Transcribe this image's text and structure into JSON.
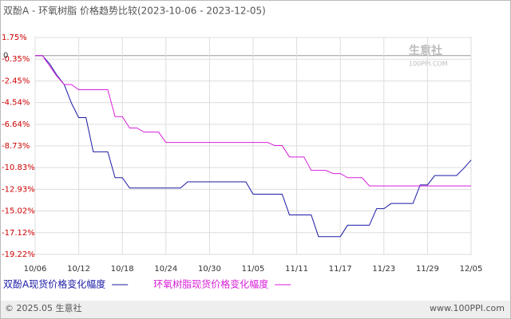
{
  "chart_data": {
    "type": "line",
    "title": "双酚A - 环氧树脂 价格趋势比较(2023-10-06 - 2023-12-05)",
    "categories": [
      "10/06",
      null,
      null,
      null,
      null,
      null,
      "10/12",
      null,
      null,
      null,
      null,
      null,
      "10/18",
      null,
      null,
      null,
      null,
      null,
      "10/24",
      null,
      null,
      null,
      null,
      null,
      "10/30",
      null,
      null,
      null,
      null,
      null,
      "11/05",
      null,
      null,
      null,
      null,
      null,
      "11/11",
      null,
      null,
      null,
      null,
      null,
      "11/17",
      null,
      null,
      null,
      null,
      null,
      "11/23",
      null,
      null,
      null,
      null,
      null,
      "11/29",
      null,
      null,
      null,
      null,
      null,
      "12/05"
    ],
    "series": [
      {
        "name": "双酚A现货价格变化幅度",
        "color": "#1a1aa6",
        "values": [
          0,
          0,
          -0.8,
          -1.9,
          -2.8,
          -4.6,
          -6.0,
          -6.0,
          -9.3,
          -9.3,
          -9.3,
          -11.8,
          -11.8,
          -12.8,
          -12.8,
          -12.8,
          -12.8,
          -12.8,
          -12.8,
          -12.8,
          -12.8,
          -12.2,
          -12.2,
          -12.2,
          -12.2,
          -12.2,
          -12.2,
          -12.2,
          -12.2,
          -12.2,
          -13.4,
          -13.4,
          -13.4,
          -13.4,
          -13.4,
          -15.4,
          -15.4,
          -15.4,
          -15.4,
          -17.5,
          -17.5,
          -17.5,
          -17.5,
          -16.4,
          -16.4,
          -16.4,
          -16.4,
          -14.8,
          -14.8,
          -14.3,
          -14.3,
          -14.3,
          -14.3,
          -12.5,
          -12.5,
          -11.6,
          -11.6,
          -11.6,
          -11.6,
          -10.9,
          -10.1
        ]
      },
      {
        "name": "环氧树脂现货价格变化幅度",
        "color": "#d81ed8",
        "values": [
          0,
          0,
          -1.0,
          -2.0,
          -2.8,
          -2.8,
          -3.3,
          -3.3,
          -3.3,
          -3.3,
          -3.3,
          -5.9,
          -5.9,
          -7.0,
          -7.0,
          -7.4,
          -7.4,
          -7.4,
          -8.4,
          -8.4,
          -8.4,
          -8.4,
          -8.4,
          -8.4,
          -8.4,
          -8.4,
          -8.4,
          -8.4,
          -8.4,
          -8.4,
          -8.4,
          -8.4,
          -8.4,
          -8.7,
          -8.7,
          -9.8,
          -9.8,
          -9.8,
          -11.1,
          -11.1,
          -11.1,
          -11.4,
          -11.4,
          -11.8,
          -11.8,
          -11.8,
          -12.6,
          -12.6,
          -12.6,
          -12.6,
          -12.6,
          -12.6,
          -12.6,
          -12.6,
          -12.6,
          -12.6,
          -12.6,
          -12.6,
          -12.6,
          -12.6,
          -12.6
        ]
      }
    ],
    "ylim": [
      -19.22,
      1.75
    ],
    "yticks": [
      {
        "value": 1.75,
        "label": "1.75%"
      },
      {
        "value": -0.35,
        "label": "-0.35%"
      },
      {
        "value": -2.45,
        "label": "-2.45%"
      },
      {
        "value": -4.54,
        "label": "-4.54%"
      },
      {
        "value": -6.64,
        "label": "-6.64%"
      },
      {
        "value": -8.73,
        "label": "-8.73%"
      },
      {
        "value": -10.83,
        "label": "-10.83%"
      },
      {
        "value": -12.93,
        "label": "-12.93%"
      },
      {
        "value": -15.02,
        "label": "-15.02%"
      },
      {
        "value": -17.12,
        "label": "-17.12%"
      },
      {
        "value": -19.22,
        "label": "-19.22%"
      }
    ],
    "zero_line": {
      "value": 0,
      "label": "0"
    },
    "grid": true,
    "watermark": [
      "生意社",
      "100PPI.COM"
    ],
    "footer": {
      "left": "© 2025.05 生意社",
      "right": "www.100PPI.com"
    }
  }
}
